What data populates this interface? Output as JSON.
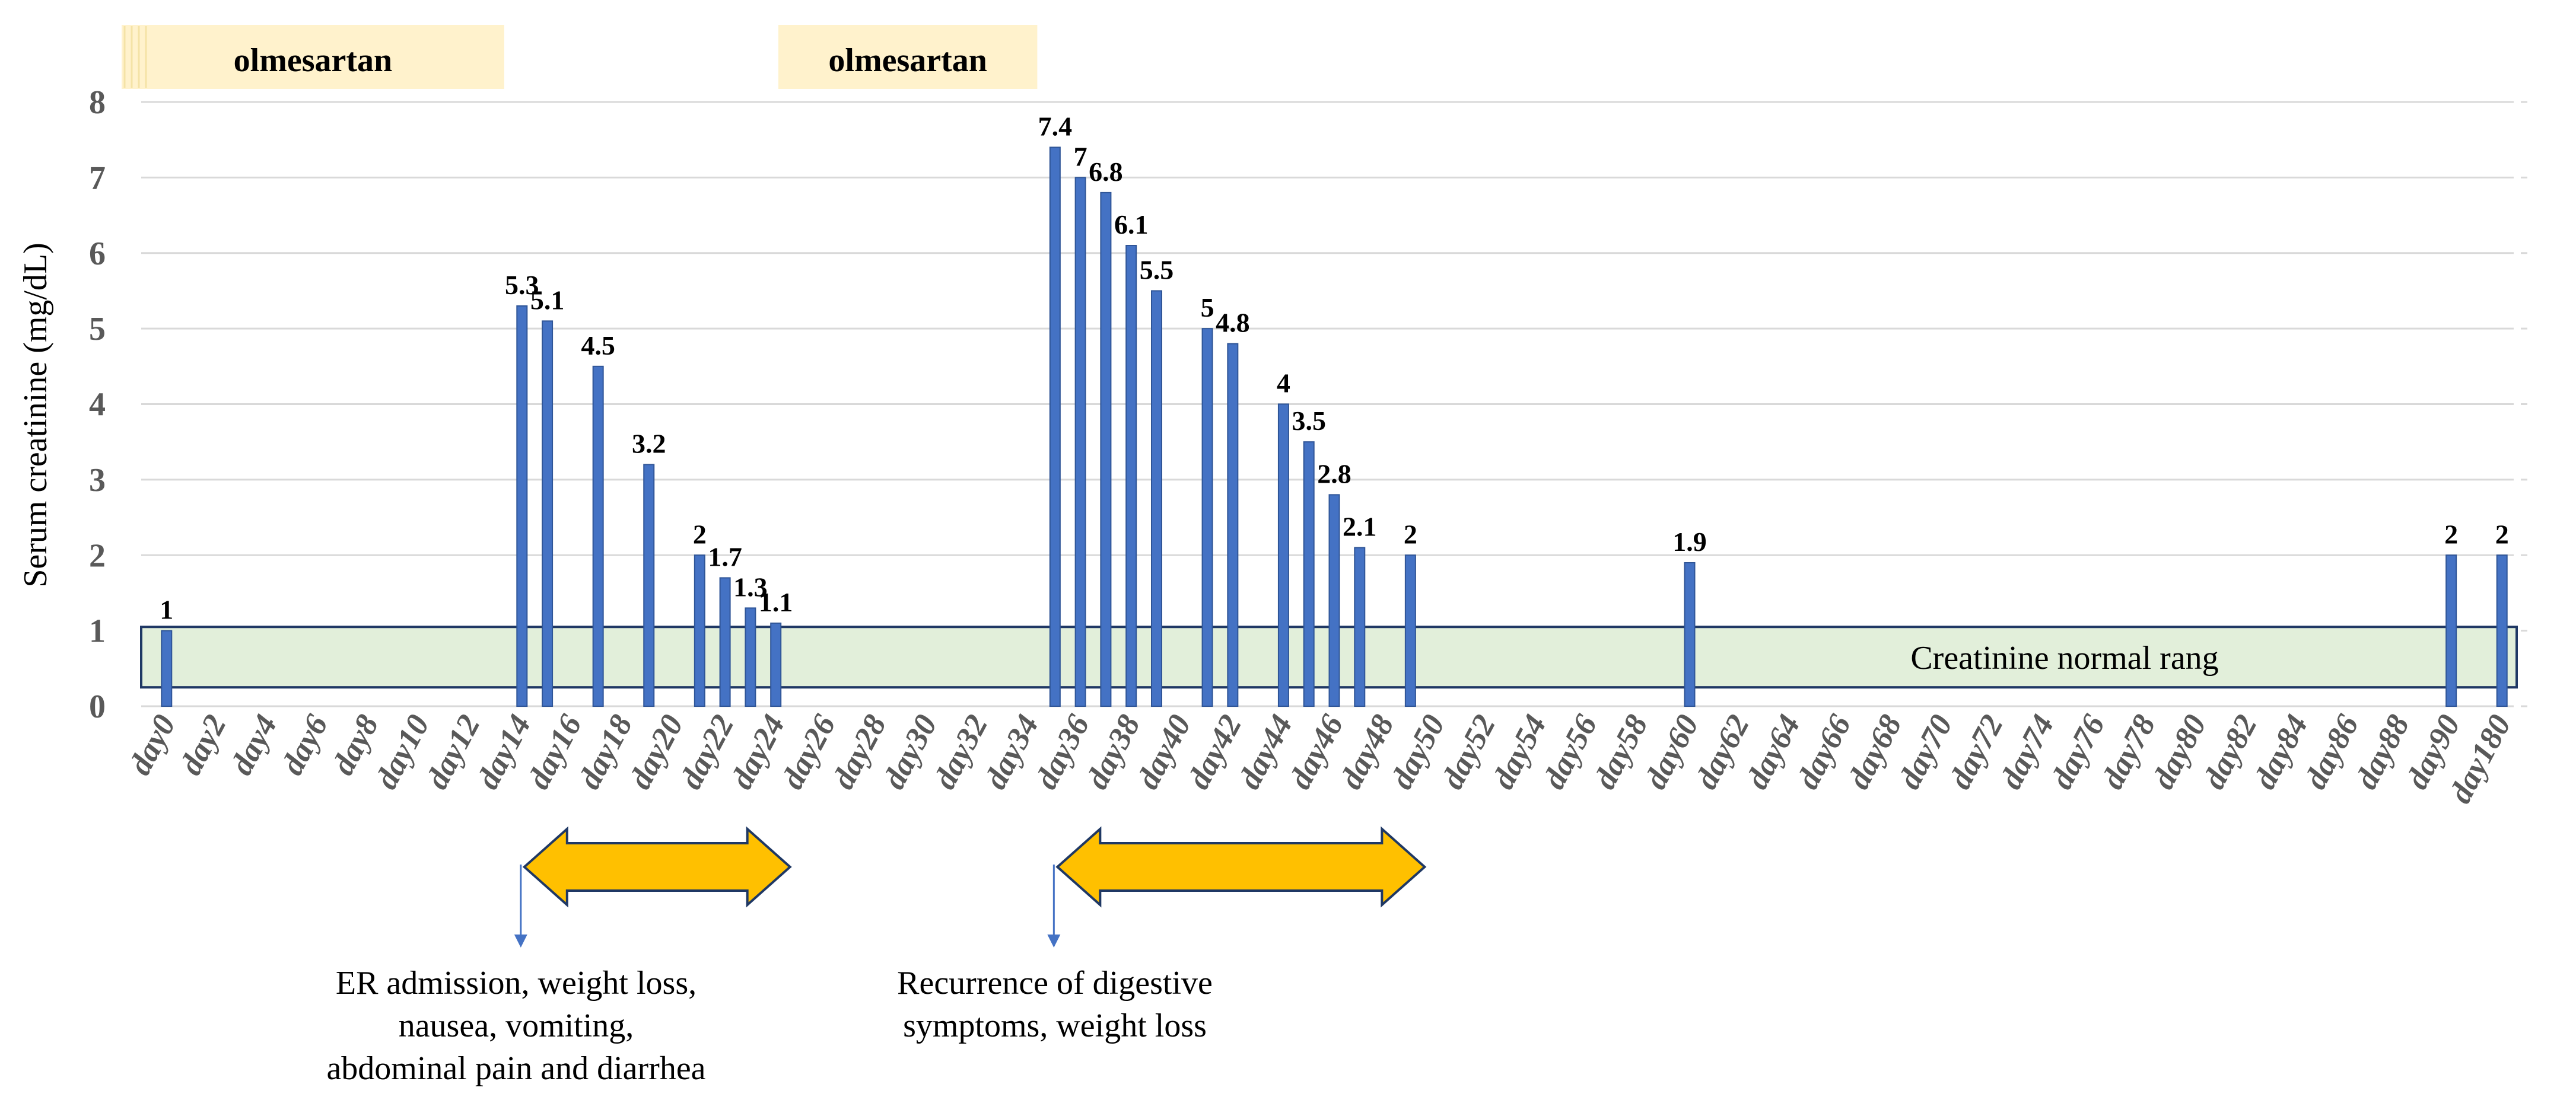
{
  "chart_data": {
    "type": "bar",
    "title": "",
    "xlabel": "",
    "ylabel": "Serum creatinine (mg/dL)",
    "ylim": [
      0,
      8
    ],
    "yticks": [
      "0",
      "1",
      "2",
      "3",
      "4",
      "5",
      "6",
      "7",
      "8"
    ],
    "grid": true,
    "categories": [
      "day0",
      "day2",
      "day4",
      "day6",
      "day8",
      "day10",
      "day12",
      "day14",
      "day16",
      "day18",
      "day20",
      "day22",
      "day24",
      "day26",
      "day28",
      "day30",
      "day32",
      "day34",
      "day36",
      "day38",
      "day40",
      "day42",
      "day44",
      "day46",
      "day48",
      "day50",
      "day52",
      "day54",
      "day56",
      "day58",
      "day60",
      "day62",
      "day64",
      "day66",
      "day68",
      "day70",
      "day72",
      "day74",
      "day76",
      "day78",
      "day80",
      "day82",
      "day84",
      "day86",
      "day88",
      "day90",
      "day180"
    ],
    "series": [
      {
        "name": "Serum creatinine",
        "color": "#4472C4",
        "points": [
          {
            "day": 0,
            "value": 1,
            "label": "1"
          },
          {
            "day": 14,
            "value": 5.3,
            "label": "5.3"
          },
          {
            "day": 15,
            "value": 5.1,
            "label": "5.1"
          },
          {
            "day": 17,
            "value": 4.5,
            "label": "4.5"
          },
          {
            "day": 19,
            "value": 3.2,
            "label": "3.2"
          },
          {
            "day": 21,
            "value": 2,
            "label": "2"
          },
          {
            "day": 22,
            "value": 1.7,
            "label": "1.7"
          },
          {
            "day": 23,
            "value": 1.3,
            "label": "1.3"
          },
          {
            "day": 24,
            "value": 1.1,
            "label": "1.1"
          },
          {
            "day": 35,
            "value": 7.4,
            "label": "7.4"
          },
          {
            "day": 36,
            "value": 7,
            "label": "7"
          },
          {
            "day": 37,
            "value": 6.8,
            "label": "6.8"
          },
          {
            "day": 38,
            "value": 6.1,
            "label": "6.1"
          },
          {
            "day": 39,
            "value": 5.5,
            "label": "5.5"
          },
          {
            "day": 41,
            "value": 5,
            "label": "5"
          },
          {
            "day": 42,
            "value": 4.8,
            "label": "4.8"
          },
          {
            "day": 44,
            "value": 4,
            "label": "4"
          },
          {
            "day": 45,
            "value": 3.5,
            "label": "3.5"
          },
          {
            "day": 46,
            "value": 2.8,
            "label": "2.8"
          },
          {
            "day": 47,
            "value": 2.1,
            "label": "2.1"
          },
          {
            "day": 49,
            "value": 2,
            "label": "2"
          },
          {
            "day": 60,
            "value": 1.9,
            "label": "1.9"
          },
          {
            "day": 90,
            "value": 2,
            "label": "2"
          },
          {
            "day": 180,
            "value": 2,
            "label": "2"
          }
        ]
      }
    ],
    "normal_range": {
      "label": "Creatinine normal rang",
      "ymin": 0.25,
      "ymax": 1.05,
      "color": "#E2EFDA"
    },
    "medication_periods": [
      {
        "label": "olmesartan",
        "from_day": 0,
        "to_day": 14
      },
      {
        "label": "olmesartan",
        "from_day": 25,
        "to_day": 35
      }
    ],
    "annotations": [
      {
        "name": "er-admission",
        "arrow_from_day": 14,
        "arrow_to_day": 24,
        "lines": [
          "ER admission, weight loss,",
          "nausea, vomiting,",
          "abdominal pain and diarrhea"
        ]
      },
      {
        "name": "recurrence",
        "arrow_from_day": 35,
        "arrow_to_day": 49,
        "lines": [
          "Recurrence of digestive",
          "symptoms, weight loss"
        ]
      }
    ],
    "colors": {
      "bar": "#4472C4",
      "bar_edge": "#2F5597",
      "arrow": "#FFC000",
      "arrow_edge": "#1F3864",
      "olm_band": "#FFF2CC",
      "grid": "#D9D9D9",
      "pointer": "#4472C4"
    }
  }
}
